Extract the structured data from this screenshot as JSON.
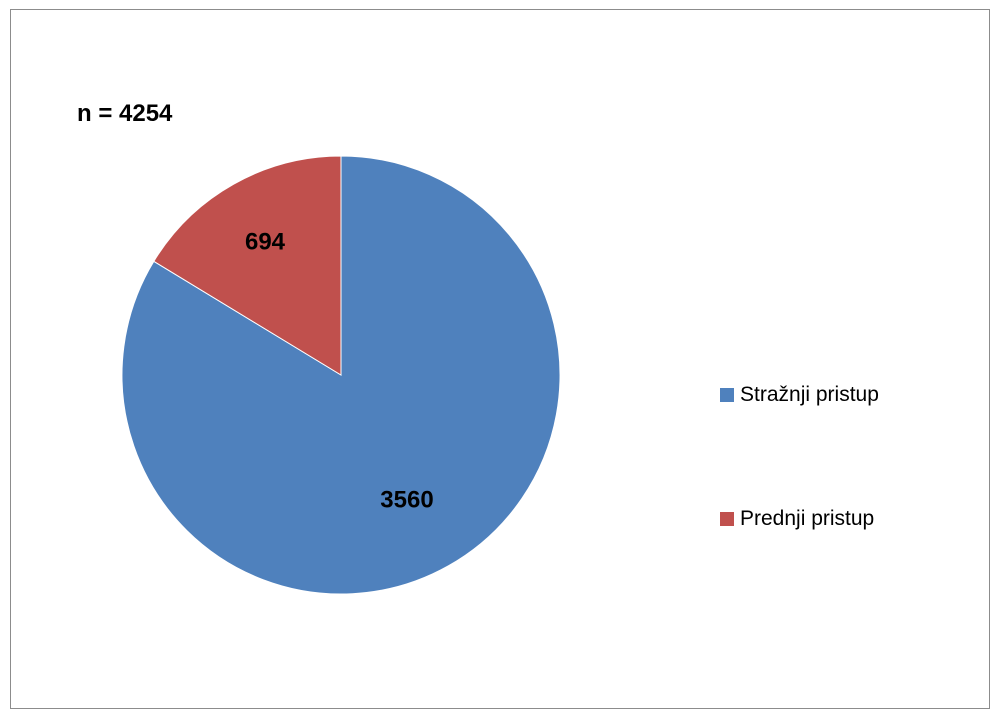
{
  "chart_data": {
    "type": "pie",
    "title": "",
    "annotation": "n = 4254",
    "slices": [
      {
        "name": "Stražnji pristup",
        "value": 3560,
        "color": "#4f81bd"
      },
      {
        "name": "Prednji pristup",
        "value": 694,
        "color": "#c0504d"
      }
    ],
    "legend": {
      "position": "right",
      "entries": [
        "Stražnji pristup",
        "Prednji pristup"
      ]
    },
    "data_labels": [
      "3560",
      "694"
    ]
  }
}
